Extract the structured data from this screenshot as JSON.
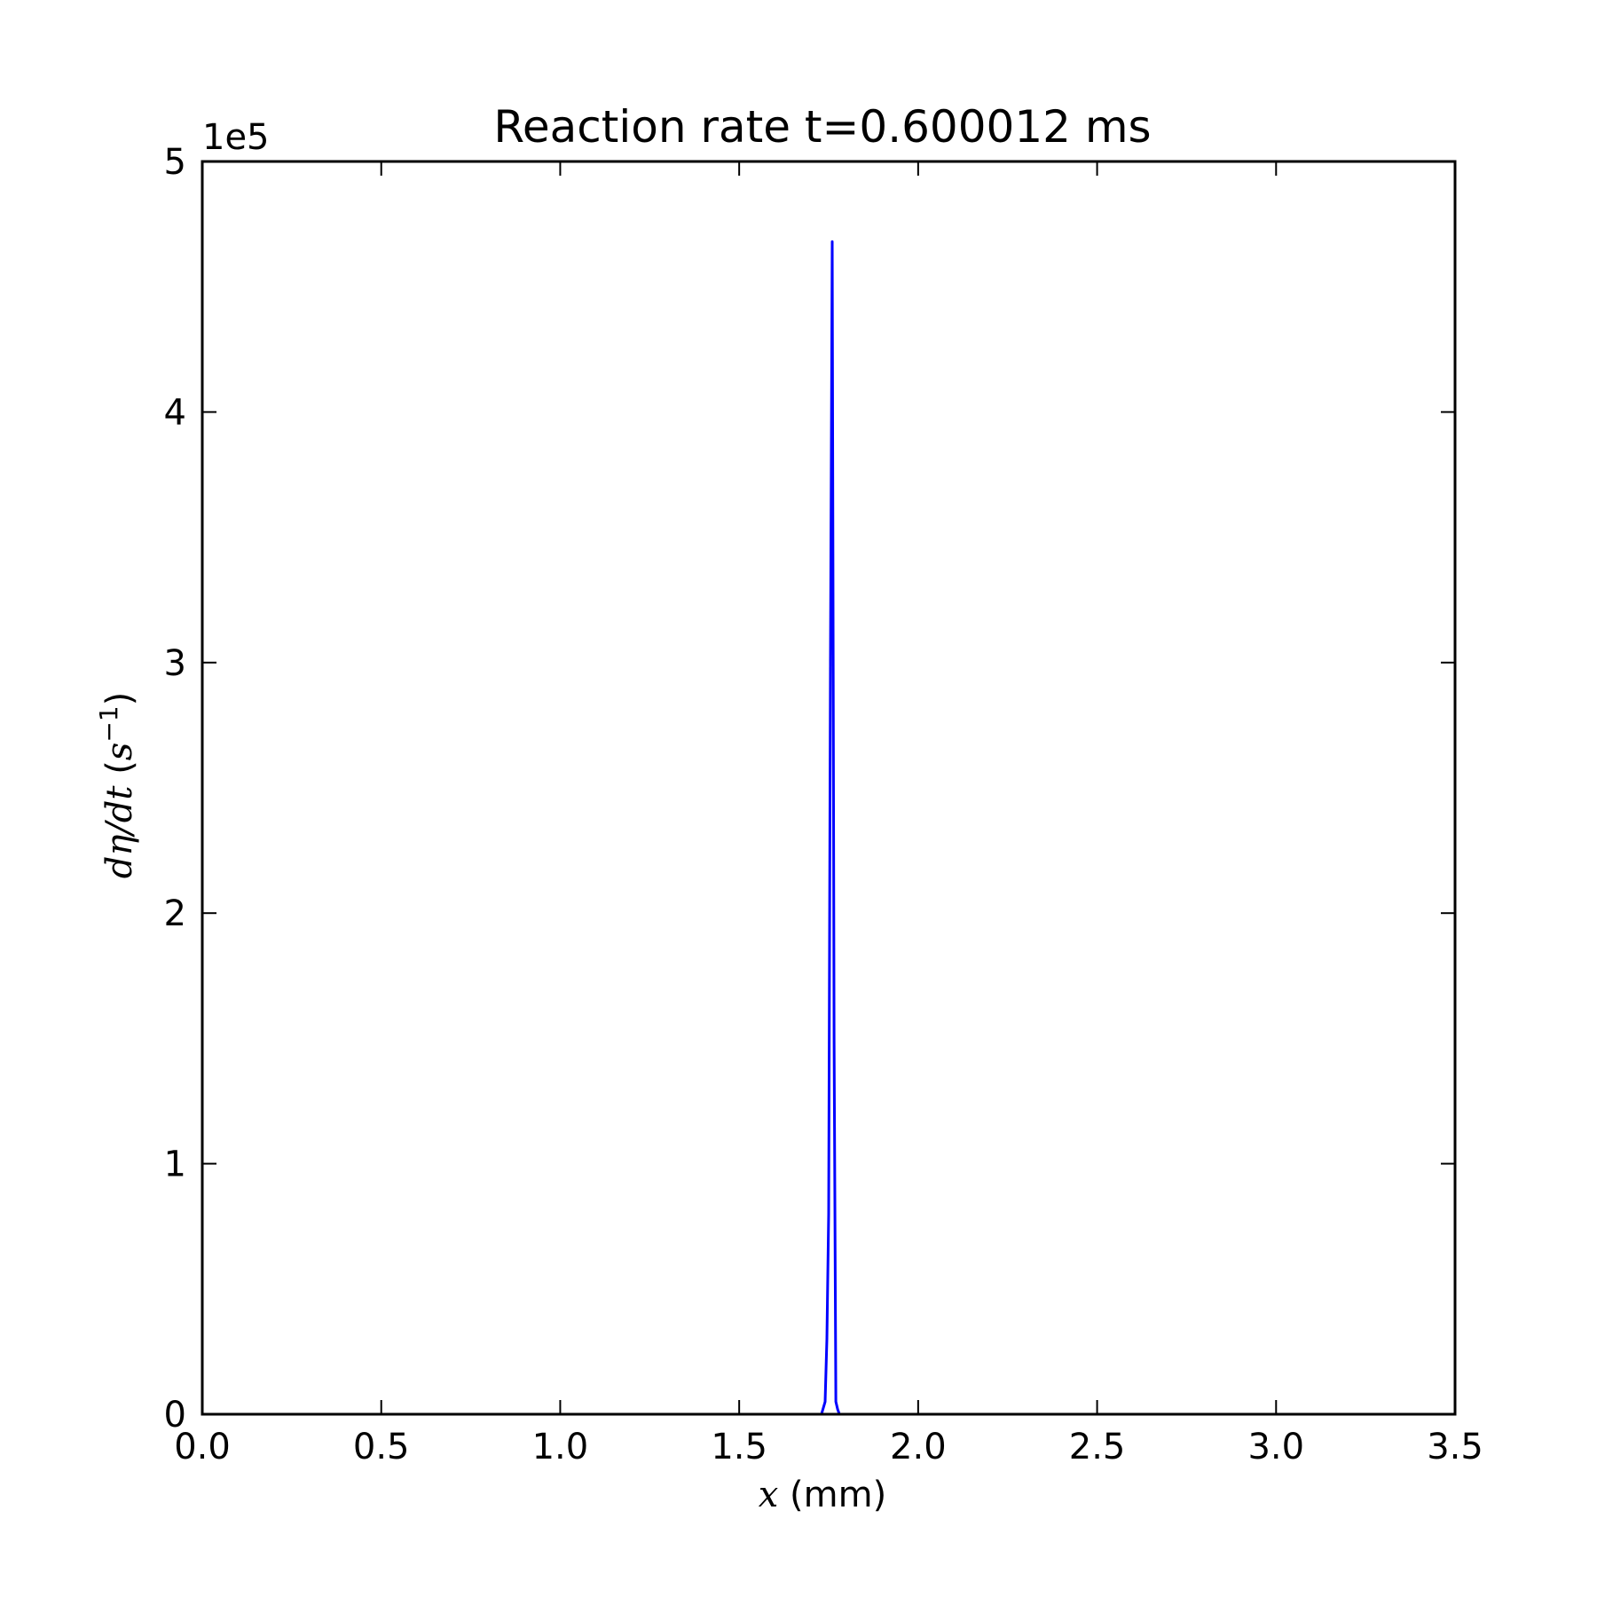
{
  "chart_data": {
    "type": "line",
    "title": "Reaction rate t=0.600012 ms",
    "xlabel": "$x$ (mm)",
    "ylabel": "$d\\eta/dt$ ($s^{-1}$)",
    "xlim": [
      0.0,
      3.5
    ],
    "ylim": [
      0,
      500000
    ],
    "y_offset_label": "1e5",
    "x_ticks": [
      "0.0",
      "0.5",
      "1.0",
      "1.5",
      "2.0",
      "2.5",
      "3.0",
      "3.5"
    ],
    "y_ticks": [
      "0",
      "1",
      "2",
      "3",
      "4",
      "5"
    ],
    "grid": false,
    "legend": "none",
    "series": [
      {
        "color": "#0000ff",
        "x": [
          0.0,
          1.72,
          1.73,
          1.74,
          1.745,
          1.75,
          1.755,
          1.76,
          1.765,
          1.77,
          1.775,
          1.78,
          1.79,
          3.5
        ],
        "y": [
          0,
          0,
          0,
          5000,
          30000,
          80000,
          300000,
          468000,
          150000,
          5000,
          2000,
          0,
          0,
          0
        ]
      }
    ]
  }
}
